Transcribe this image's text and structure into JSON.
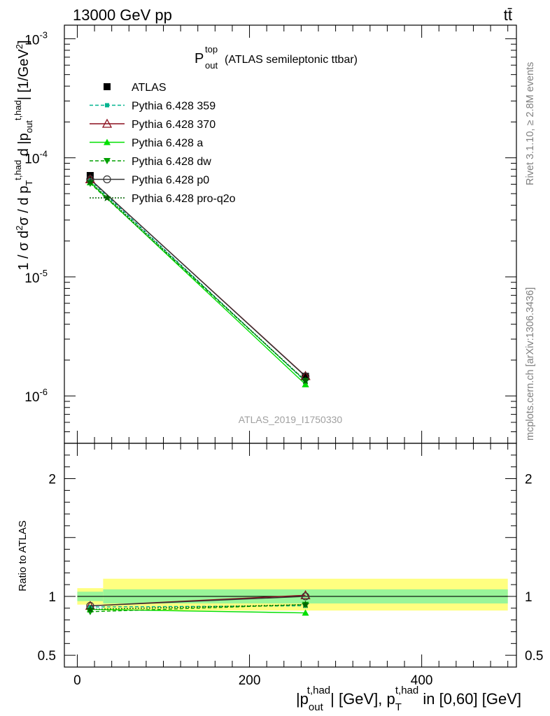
{
  "header": {
    "left": "13000 GeV pp",
    "right": "tt̄"
  },
  "side_labels": {
    "rivet": "Rivet 3.1.10, ≥ 2.8M events",
    "mcplots": "mcplots.cern.ch [arXiv:1306.3436]"
  },
  "plot_title": {
    "main": "P",
    "sup": "top",
    "sub": "out",
    "rest": "(ATLAS semileptonic ttbar)"
  },
  "watermark": "ATLAS_2019_I1750330",
  "ylabel_main": "1 / σ d²σ / d p_T^{t,had} d |p_out^{t,had}| [1/GeV²]",
  "ylabel_ratio": "Ratio to ATLAS",
  "xlabel": "|p_out^{t,had}| [GeV], p_T^{t,had} in [0,60] [GeV]",
  "colors": {
    "atlas": "#000000",
    "p359": "#00b38f",
    "p370": "#8b0f1e",
    "pa": "#00e000",
    "pdw": "#00a000",
    "pp0": "#333333",
    "pq2o": "#006400",
    "band_outer": "#ffff80",
    "band_inner": "#99f599"
  },
  "chart_data": {
    "type": "line",
    "title": "P_out^top (ATLAS semileptonic ttbar)",
    "xlabel": "|p_out^{t,had}| [GeV], p_T^{t,had} in [0,60] [GeV]",
    "x_ticks": [
      "0",
      "200",
      "400"
    ],
    "xlim": [
      -15,
      510
    ],
    "main": {
      "ylabel": "1 / σ d²σ / d p_T^{t,had} d |p_out^{t,had}| [1/GeV²]",
      "yscale": "log",
      "ylim": [
        4e-07,
        0.0013
      ],
      "y_ticks": [
        "10^-6",
        "10^-5",
        "10^-4",
        "10^-3"
      ]
    },
    "ratio": {
      "ylabel": "Ratio to ATLAS",
      "ylim": [
        0.4,
        2.3
      ],
      "y_ticks": [
        "0.5",
        "1",
        "2"
      ]
    },
    "x": [
      15,
      265
    ],
    "bins": [
      [
        0,
        30
      ],
      [
        30,
        500
      ]
    ],
    "reference": {
      "name": "ATLAS",
      "values": [
        7.1e-05,
        1.46e-06
      ],
      "band_stat": [
        [
          0.96,
          1.04
        ],
        [
          0.94,
          1.06
        ]
      ],
      "band_total": [
        [
          0.93,
          1.07
        ],
        [
          0.88,
          1.15
        ]
      ]
    },
    "series": [
      {
        "name": "Pythia 6.428 359",
        "color_key": "p359",
        "marker": "square-small",
        "dash": "dashed",
        "values": [
          6.5e-05,
          1.32e-06
        ],
        "ratio": [
          0.91,
          0.92
        ]
      },
      {
        "name": "Pythia 6.428 370",
        "color_key": "p370",
        "marker": "triangle-open",
        "dash": "solid",
        "values": [
          6.6e-05,
          1.47e-06
        ],
        "ratio": [
          0.92,
          1.01
        ]
      },
      {
        "name": "Pythia 6.428 a",
        "color_key": "pa",
        "marker": "triangle",
        "dash": "solid",
        "values": [
          6.2e-05,
          1.25e-06
        ],
        "ratio": [
          0.89,
          0.86
        ]
      },
      {
        "name": "Pythia 6.428 dw",
        "color_key": "pdw",
        "marker": "triangle-down",
        "dash": "dashed",
        "values": [
          6.1e-05,
          1.34e-06
        ],
        "ratio": [
          0.87,
          0.93
        ]
      },
      {
        "name": "Pythia 6.428 p0",
        "color_key": "pp0",
        "marker": "circle-open",
        "dash": "solid",
        "values": [
          6.6e-05,
          1.46e-06
        ],
        "ratio": [
          0.92,
          1.0
        ]
      },
      {
        "name": "Pythia 6.428 pro-q2o",
        "color_key": "pq2o",
        "marker": "star",
        "dash": "dotted",
        "values": [
          6.3e-05,
          1.34e-06
        ],
        "ratio": [
          0.89,
          0.93
        ]
      }
    ],
    "legend_position": "top-left"
  }
}
